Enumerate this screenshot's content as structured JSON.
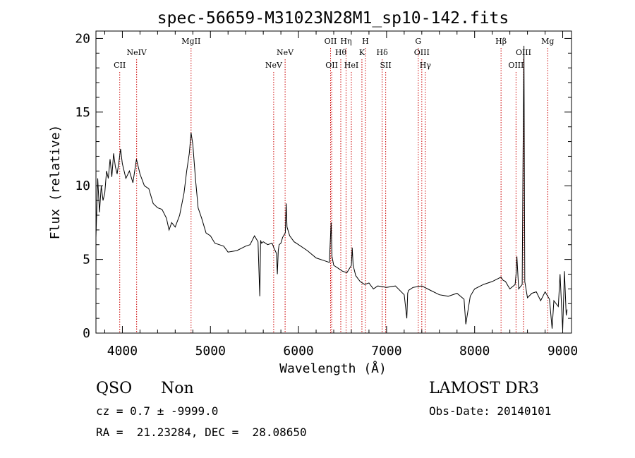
{
  "chart_data": {
    "type": "line",
    "title": "spec-56659-M31023N28M1_sp10-142.fits",
    "xlabel": "Wavelength (Å)",
    "ylabel": "Flux (relative)",
    "xlim": [
      3700,
      9100
    ],
    "ylim": [
      0,
      20.5
    ],
    "x_ticks": [
      "4000",
      "5000",
      "6000",
      "7000",
      "8000",
      "9000"
    ],
    "y_ticks": [
      "0",
      "5",
      "10",
      "15",
      "20"
    ],
    "grid": false,
    "series": [
      {
        "color": "#000000",
        "x": [
          3700,
          3720,
          3740,
          3760,
          3780,
          3800,
          3820,
          3840,
          3860,
          3880,
          3900,
          3920,
          3940,
          3960,
          3980,
          4000,
          4040,
          4080,
          4120,
          4160,
          4200,
          4250,
          4300,
          4350,
          4400,
          4450,
          4500,
          4530,
          4560,
          4600,
          4650,
          4700,
          4730,
          4760,
          4780,
          4800,
          4830,
          4860,
          4900,
          4950,
          5000,
          5050,
          5100,
          5150,
          5200,
          5300,
          5400,
          5450,
          5500,
          5540,
          5560,
          5570,
          5580,
          5600,
          5650,
          5700,
          5720,
          5750,
          5760,
          5770,
          5780,
          5800,
          5820,
          5850,
          5860,
          5870,
          5900,
          5950,
          6000,
          6100,
          6200,
          6300,
          6350,
          6370,
          6380,
          6400,
          6450,
          6500,
          6550,
          6600,
          6610,
          6620,
          6650,
          6700,
          6750,
          6800,
          6850,
          6900,
          7000,
          7100,
          7200,
          7230,
          7240,
          7250,
          7300,
          7400,
          7500,
          7600,
          7700,
          7800,
          7880,
          7900,
          7950,
          8000,
          8100,
          8200,
          8300,
          8320,
          8350,
          8400,
          8460,
          8470,
          8480,
          8500,
          8540,
          8550,
          8560,
          8570,
          8600,
          8650,
          8700,
          8750,
          8800,
          8850,
          8880,
          8900,
          8950,
          8970,
          9000,
          9020,
          9040,
          9050
        ],
        "y": [
          6.5,
          10.5,
          8.2,
          10.0,
          9.0,
          9.5,
          11.0,
          10.5,
          11.8,
          10.6,
          12.2,
          11.3,
          10.8,
          11.6,
          12.5,
          11.5,
          10.5,
          11.0,
          10.2,
          11.8,
          10.8,
          10.0,
          9.8,
          8.8,
          8.5,
          8.4,
          7.8,
          7.0,
          7.5,
          7.2,
          8.0,
          9.5,
          11.0,
          12.2,
          13.6,
          12.8,
          10.5,
          8.5,
          7.8,
          6.8,
          6.6,
          6.1,
          6.0,
          5.9,
          5.5,
          5.6,
          5.9,
          6.0,
          6.6,
          6.2,
          2.5,
          6.3,
          6.1,
          6.2,
          6.0,
          6.1,
          5.8,
          5.4,
          4.0,
          5.6,
          6.0,
          6.1,
          6.5,
          6.8,
          8.8,
          7.2,
          6.6,
          6.2,
          6.0,
          5.6,
          5.1,
          4.9,
          4.8,
          7.5,
          5.2,
          4.6,
          4.4,
          4.2,
          4.1,
          4.6,
          5.8,
          4.6,
          3.9,
          3.5,
          3.3,
          3.4,
          3.0,
          3.2,
          3.1,
          3.2,
          2.6,
          1.0,
          2.7,
          2.9,
          3.1,
          3.2,
          2.9,
          2.6,
          2.5,
          2.7,
          2.3,
          0.6,
          2.5,
          3.0,
          3.3,
          3.5,
          3.8,
          3.6,
          3.5,
          3.0,
          3.3,
          4.0,
          5.2,
          3.0,
          3.3,
          12.5,
          19.5,
          3.5,
          2.4,
          2.7,
          2.8,
          2.2,
          2.8,
          2.3,
          0.3,
          2.2,
          1.8,
          4.0,
          0.2,
          4.2,
          1.2,
          1.6
        ]
      }
    ],
    "lines": [
      {
        "label": "CII",
        "x": 3970,
        "row": 2
      },
      {
        "label": "NeIV",
        "x": 4162,
        "row": 1
      },
      {
        "label": "MgII",
        "x": 4780,
        "row": 0
      },
      {
        "label": "NeV",
        "x": 5718,
        "row": 2
      },
      {
        "label": "NeV",
        "x": 5848,
        "row": 1
      },
      {
        "label": "OII",
        "x": 6364,
        "row": 0
      },
      {
        "label": "OII",
        "x": 6377,
        "row": 2
      },
      {
        "label": "Hθ",
        "x": 6480,
        "row": 1
      },
      {
        "label": "Hη",
        "x": 6540,
        "row": 0
      },
      {
        "label": "HeI",
        "x": 6600,
        "row": 2
      },
      {
        "label": "K",
        "x": 6720,
        "row": 1
      },
      {
        "label": "H",
        "x": 6760,
        "row": 0
      },
      {
        "label": "Hδ",
        "x": 6950,
        "row": 1
      },
      {
        "label": "SII",
        "x": 6990,
        "row": 2
      },
      {
        "label": "G",
        "x": 7360,
        "row": 0
      },
      {
        "label": "OIII",
        "x": 7400,
        "row": 1
      },
      {
        "label": "Hγ",
        "x": 7440,
        "row": 2
      },
      {
        "label": "Hβ",
        "x": 8300,
        "row": 0
      },
      {
        "label": "OIII",
        "x": 8470,
        "row": 2
      },
      {
        "label": "OIII",
        "x": 8555,
        "row": 1
      },
      {
        "label": "Mg",
        "x": 8830,
        "row": 0
      }
    ]
  },
  "info": {
    "class": "QSO",
    "subclass": "Non",
    "survey": "LAMOST DR3",
    "cz": "cz = 0.7 ± -9999.0",
    "obsdate": "Obs-Date: 20140101",
    "coords": "RA =  21.23284, DEC =  28.08650"
  },
  "colors": {
    "spectrum": "#000000",
    "line_marker": "#cc0000",
    "axes": "#000000"
  }
}
